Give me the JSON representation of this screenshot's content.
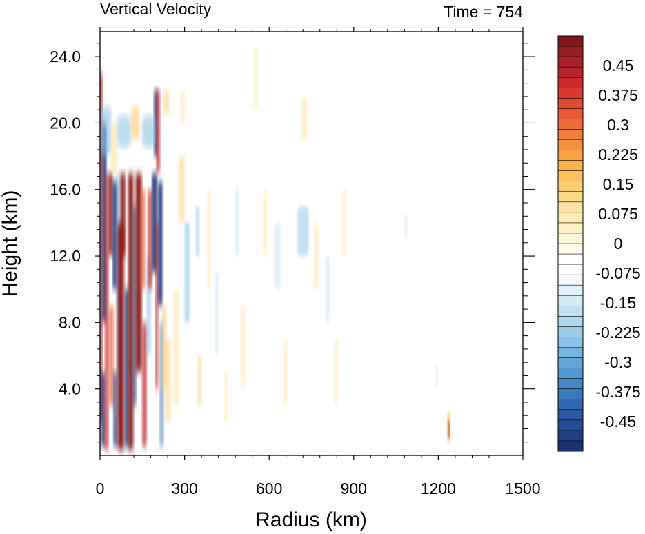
{
  "chart_data": {
    "type": "heatmap",
    "title": "Vertical Velocity",
    "subtitle": "Time = 754",
    "xlabel": "Radius (km)",
    "ylabel": "Height (km)",
    "xlim": [
      0,
      1500
    ],
    "ylim": [
      0,
      25.5
    ],
    "x_ticks": [
      0,
      300,
      600,
      900,
      1200,
      1500
    ],
    "x_tick_labels": [
      "0",
      "300",
      "600",
      "900",
      "1200",
      "1500"
    ],
    "y_ticks": [
      4,
      8,
      12,
      16,
      20,
      24
    ],
    "y_tick_labels": [
      "4.0",
      "8.0",
      "12.0",
      "16.0",
      "20.0",
      "24.0"
    ],
    "colorbar": {
      "labels": [
        "0.45",
        "0.375",
        "0.3",
        "0.225",
        "0.15",
        "0.075",
        "0",
        "-0.075",
        "-0.15",
        "-0.225",
        "-0.3",
        "-0.375",
        "-0.45"
      ],
      "label_values": [
        0.45,
        0.375,
        0.3,
        0.225,
        0.15,
        0.075,
        0,
        -0.075,
        -0.15,
        -0.225,
        -0.3,
        -0.375,
        -0.45
      ],
      "levels_min": -0.525,
      "levels_max": 0.525,
      "level_step": 0.025,
      "colors_top_to_bottom": [
        "#7e1a1c",
        "#941e22",
        "#a82227",
        "#ba2328",
        "#cc2a2b",
        "#d9372f",
        "#e04a33",
        "#e65b36",
        "#ec6d3a",
        "#f07f3d",
        "#f4913f",
        "#f8a244",
        "#fab24f",
        "#fbc15f",
        "#fcce73",
        "#fdda88",
        "#fde39d",
        "#fdebb1",
        "#fef2c5",
        "#fef7d9",
        "#fffcec",
        "#ffffff",
        "#ffffff",
        "#f3f9fd",
        "#e4f2fb",
        "#d4eaf7",
        "#c3e1f3",
        "#b1d7ef",
        "#9ecdeb",
        "#8ac1e5",
        "#76b3df",
        "#63a5d8",
        "#5297cf",
        "#4588c6",
        "#3a78bc",
        "#3268b1",
        "#2b58a3",
        "#264a93",
        "#213d82",
        "#1d3371"
      ]
    },
    "field_description": "Alternating updraft/downdraft bands concentrated at radius 0-230 km extending to about 17 km height, with weaker perturbations out to about 900 km and a small updraft near 1240 km at low levels."
  }
}
